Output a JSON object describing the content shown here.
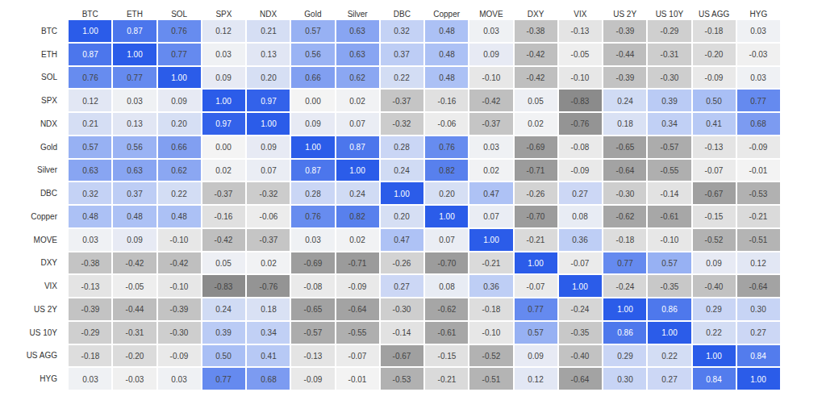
{
  "chart_data": {
    "type": "heatmap",
    "columns": [
      "BTC",
      "ETH",
      "SOL",
      "SPX",
      "NDX",
      "Gold",
      "Silver",
      "DBC",
      "Copper",
      "MOVE",
      "DXY",
      "VIX",
      "US 2Y",
      "US 10Y",
      "US AGG",
      "HYG"
    ],
    "rows": [
      "BTC",
      "ETH",
      "SOL",
      "SPX",
      "NDX",
      "Gold",
      "Silver",
      "DBC",
      "Copper",
      "MOVE",
      "DXY",
      "VIX",
      "US 2Y",
      "US 10Y",
      "US AGG",
      "HYG"
    ],
    "values": [
      [
        1.0,
        0.87,
        0.76,
        0.12,
        0.21,
        0.57,
        0.63,
        0.32,
        0.48,
        0.03,
        -0.38,
        -0.13,
        -0.39,
        -0.29,
        -0.18,
        0.03
      ],
      [
        0.87,
        1.0,
        0.77,
        0.03,
        0.13,
        0.56,
        0.63,
        0.37,
        0.48,
        0.09,
        -0.42,
        -0.05,
        -0.44,
        -0.31,
        -0.2,
        -0.03
      ],
      [
        0.76,
        0.77,
        1.0,
        0.09,
        0.2,
        0.66,
        0.62,
        0.22,
        0.48,
        -0.1,
        -0.42,
        -0.1,
        -0.39,
        -0.3,
        -0.09,
        0.03
      ],
      [
        0.12,
        0.03,
        0.09,
        1.0,
        0.97,
        0.0,
        0.02,
        -0.37,
        -0.16,
        -0.42,
        0.05,
        -0.83,
        0.24,
        0.39,
        0.5,
        0.77
      ],
      [
        0.21,
        0.13,
        0.2,
        0.97,
        1.0,
        0.09,
        0.07,
        -0.32,
        -0.06,
        -0.37,
        0.02,
        -0.76,
        0.18,
        0.34,
        0.41,
        0.68
      ],
      [
        0.57,
        0.56,
        0.66,
        0.0,
        0.09,
        1.0,
        0.87,
        0.28,
        0.76,
        0.03,
        -0.69,
        -0.08,
        -0.65,
        -0.57,
        -0.13,
        -0.09
      ],
      [
        0.63,
        0.63,
        0.62,
        0.02,
        0.07,
        0.87,
        1.0,
        0.24,
        0.82,
        0.02,
        -0.71,
        -0.09,
        -0.64,
        -0.55,
        -0.07,
        -0.01
      ],
      [
        0.32,
        0.37,
        0.22,
        -0.37,
        -0.32,
        0.28,
        0.24,
        1.0,
        0.2,
        0.47,
        -0.26,
        0.27,
        -0.3,
        -0.14,
        -0.67,
        -0.53
      ],
      [
        0.48,
        0.48,
        0.48,
        -0.16,
        -0.06,
        0.76,
        0.82,
        0.2,
        1.0,
        0.07,
        -0.7,
        0.08,
        -0.62,
        -0.61,
        -0.15,
        -0.21
      ],
      [
        0.03,
        0.09,
        -0.1,
        -0.42,
        -0.37,
        0.03,
        0.02,
        0.47,
        0.07,
        1.0,
        -0.21,
        0.36,
        -0.18,
        -0.1,
        -0.52,
        -0.51
      ],
      [
        -0.38,
        -0.42,
        -0.42,
        0.05,
        0.02,
        -0.69,
        -0.71,
        -0.26,
        -0.7,
        -0.21,
        1.0,
        -0.07,
        0.77,
        0.57,
        0.09,
        0.12
      ],
      [
        -0.13,
        -0.05,
        -0.1,
        -0.83,
        -0.76,
        -0.08,
        -0.09,
        0.27,
        0.08,
        0.36,
        -0.07,
        1.0,
        -0.24,
        -0.35,
        -0.4,
        -0.64
      ],
      [
        -0.39,
        -0.44,
        -0.39,
        0.24,
        0.18,
        -0.65,
        -0.64,
        -0.3,
        -0.62,
        -0.18,
        0.77,
        -0.24,
        1.0,
        0.86,
        0.29,
        0.3
      ],
      [
        -0.29,
        -0.31,
        -0.3,
        0.39,
        0.34,
        -0.57,
        -0.55,
        -0.14,
        -0.61,
        -0.1,
        0.57,
        -0.35,
        0.86,
        1.0,
        0.22,
        0.27
      ],
      [
        -0.18,
        -0.2,
        -0.09,
        0.5,
        0.41,
        -0.13,
        -0.07,
        -0.67,
        -0.15,
        -0.52,
        0.09,
        -0.4,
        0.29,
        0.22,
        1.0,
        0.84
      ],
      [
        0.03,
        -0.03,
        0.03,
        0.77,
        0.68,
        -0.09,
        -0.01,
        -0.53,
        -0.21,
        -0.51,
        0.12,
        -0.64,
        0.3,
        0.27,
        0.84,
        1.0
      ]
    ],
    "value_labels": [
      [
        "1.00",
        "0.87",
        "0.76",
        "0.12",
        "0.21",
        "0.57",
        "0.63",
        "0.32",
        "0.48",
        "0.03",
        "-0.38",
        "-0.13",
        "-0.39",
        "-0.29",
        "-0.18",
        "0.03"
      ],
      [
        "0.87",
        "1.00",
        "0.77",
        "0.03",
        "0.13",
        "0.56",
        "0.63",
        "0.37",
        "0.48",
        "0.09",
        "-0.42",
        "-0.05",
        "-0.44",
        "-0.31",
        "-0.20",
        "-0.03"
      ],
      [
        "0.76",
        "0.77",
        "1.00",
        "0.09",
        "0.20",
        "0.66",
        "0.62",
        "0.22",
        "0.48",
        "-0.10",
        "-0.42",
        "-0.10",
        "-0.39",
        "-0.30",
        "-0.09",
        "0.03"
      ],
      [
        "0.12",
        "0.03",
        "0.09",
        "1.00",
        "0.97",
        "0.00",
        "0.02",
        "-0.37",
        "-0.16",
        "-0.42",
        "0.05",
        "-0.83",
        "0.24",
        "0.39",
        "0.50",
        "0.77"
      ],
      [
        "0.21",
        "0.13",
        "0.20",
        "0.97",
        "1.00",
        "0.09",
        "0.07",
        "-0.32",
        "-0.06",
        "-0.37",
        "0.02",
        "-0.76",
        "0.18",
        "0.34",
        "0.41",
        "0.68"
      ],
      [
        "0.57",
        "0.56",
        "0.66",
        "0.00",
        "0.09",
        "1.00",
        "0.87",
        "0.28",
        "0.76",
        "0.03",
        "-0.69",
        "-0.08",
        "-0.65",
        "-0.57",
        "-0.13",
        "-0.09"
      ],
      [
        "0.63",
        "0.63",
        "0.62",
        "0.02",
        "0.07",
        "0.87",
        "1.00",
        "0.24",
        "0.82",
        "0.02",
        "-0.71",
        "-0.09",
        "-0.64",
        "-0.55",
        "-0.07",
        "-0.01"
      ],
      [
        "0.32",
        "0.37",
        "0.22",
        "-0.37",
        "-0.32",
        "0.28",
        "0.24",
        "1.00",
        "0.20",
        "0.47",
        "-0.26",
        "0.27",
        "-0.30",
        "-0.14",
        "-0.67",
        "-0.53"
      ],
      [
        "0.48",
        "0.48",
        "0.48",
        "-0.16",
        "-0.06",
        "0.76",
        "0.82",
        "0.20",
        "1.00",
        "0.07",
        "-0.70",
        "0.08",
        "-0.62",
        "-0.61",
        "-0.15",
        "-0.21"
      ],
      [
        "0.03",
        "0.09",
        "-0.10",
        "-0.42",
        "-0.37",
        "0.03",
        "0.02",
        "0.47",
        "0.07",
        "1.00",
        "-0.21",
        "0.36",
        "-0.18",
        "-0.10",
        "-0.52",
        "-0.51"
      ],
      [
        "-0.38",
        "-0.42",
        "-0.42",
        "0.05",
        "0.02",
        "-0.69",
        "-0.71",
        "-0.26",
        "-0.70",
        "-0.21",
        "1.00",
        "-0.07",
        "0.77",
        "0.57",
        "0.09",
        "0.12"
      ],
      [
        "-0.13",
        "-0.05",
        "-0.10",
        "-0.83",
        "-0.76",
        "-0.08",
        "-0.09",
        "0.27",
        "0.08",
        "0.36",
        "-0.07",
        "1.00",
        "-0.24",
        "-0.35",
        "-0.40",
        "-0.64"
      ],
      [
        "-0.39",
        "-0.44",
        "-0.39",
        "0.24",
        "0.18",
        "-0.65",
        "-0.64",
        "-0.30",
        "-0.62",
        "-0.18",
        "0.77",
        "-0.24",
        "1.00",
        "0.86",
        "0.29",
        "0.30"
      ],
      [
        "-0.29",
        "-0.31",
        "-0.30",
        "0.39",
        "0.34",
        "-0.57",
        "-0.55",
        "-0.14",
        "-0.61",
        "-0.10",
        "0.57",
        "-0.35",
        "0.86",
        "1.00",
        "0.22",
        "0.27"
      ],
      [
        "-0.18",
        "-0.20",
        "-0.09",
        "0.50",
        "0.41",
        "-0.13",
        "-0.07",
        "-0.67",
        "-0.15",
        "-0.52",
        "0.09",
        "-0.40",
        "0.29",
        "0.22",
        "1.00",
        "0.84"
      ],
      [
        "0.03",
        "-0.03",
        "0.03",
        "0.77",
        "0.68",
        "-0.09",
        "-0.01",
        "-0.53",
        "-0.21",
        "-0.51",
        "0.12",
        "-0.64",
        "0.30",
        "0.27",
        "0.84",
        "1.00"
      ]
    ],
    "zlim": [
      -1,
      1
    ],
    "data_labels": true,
    "grid": false,
    "tick_labels": true
  }
}
